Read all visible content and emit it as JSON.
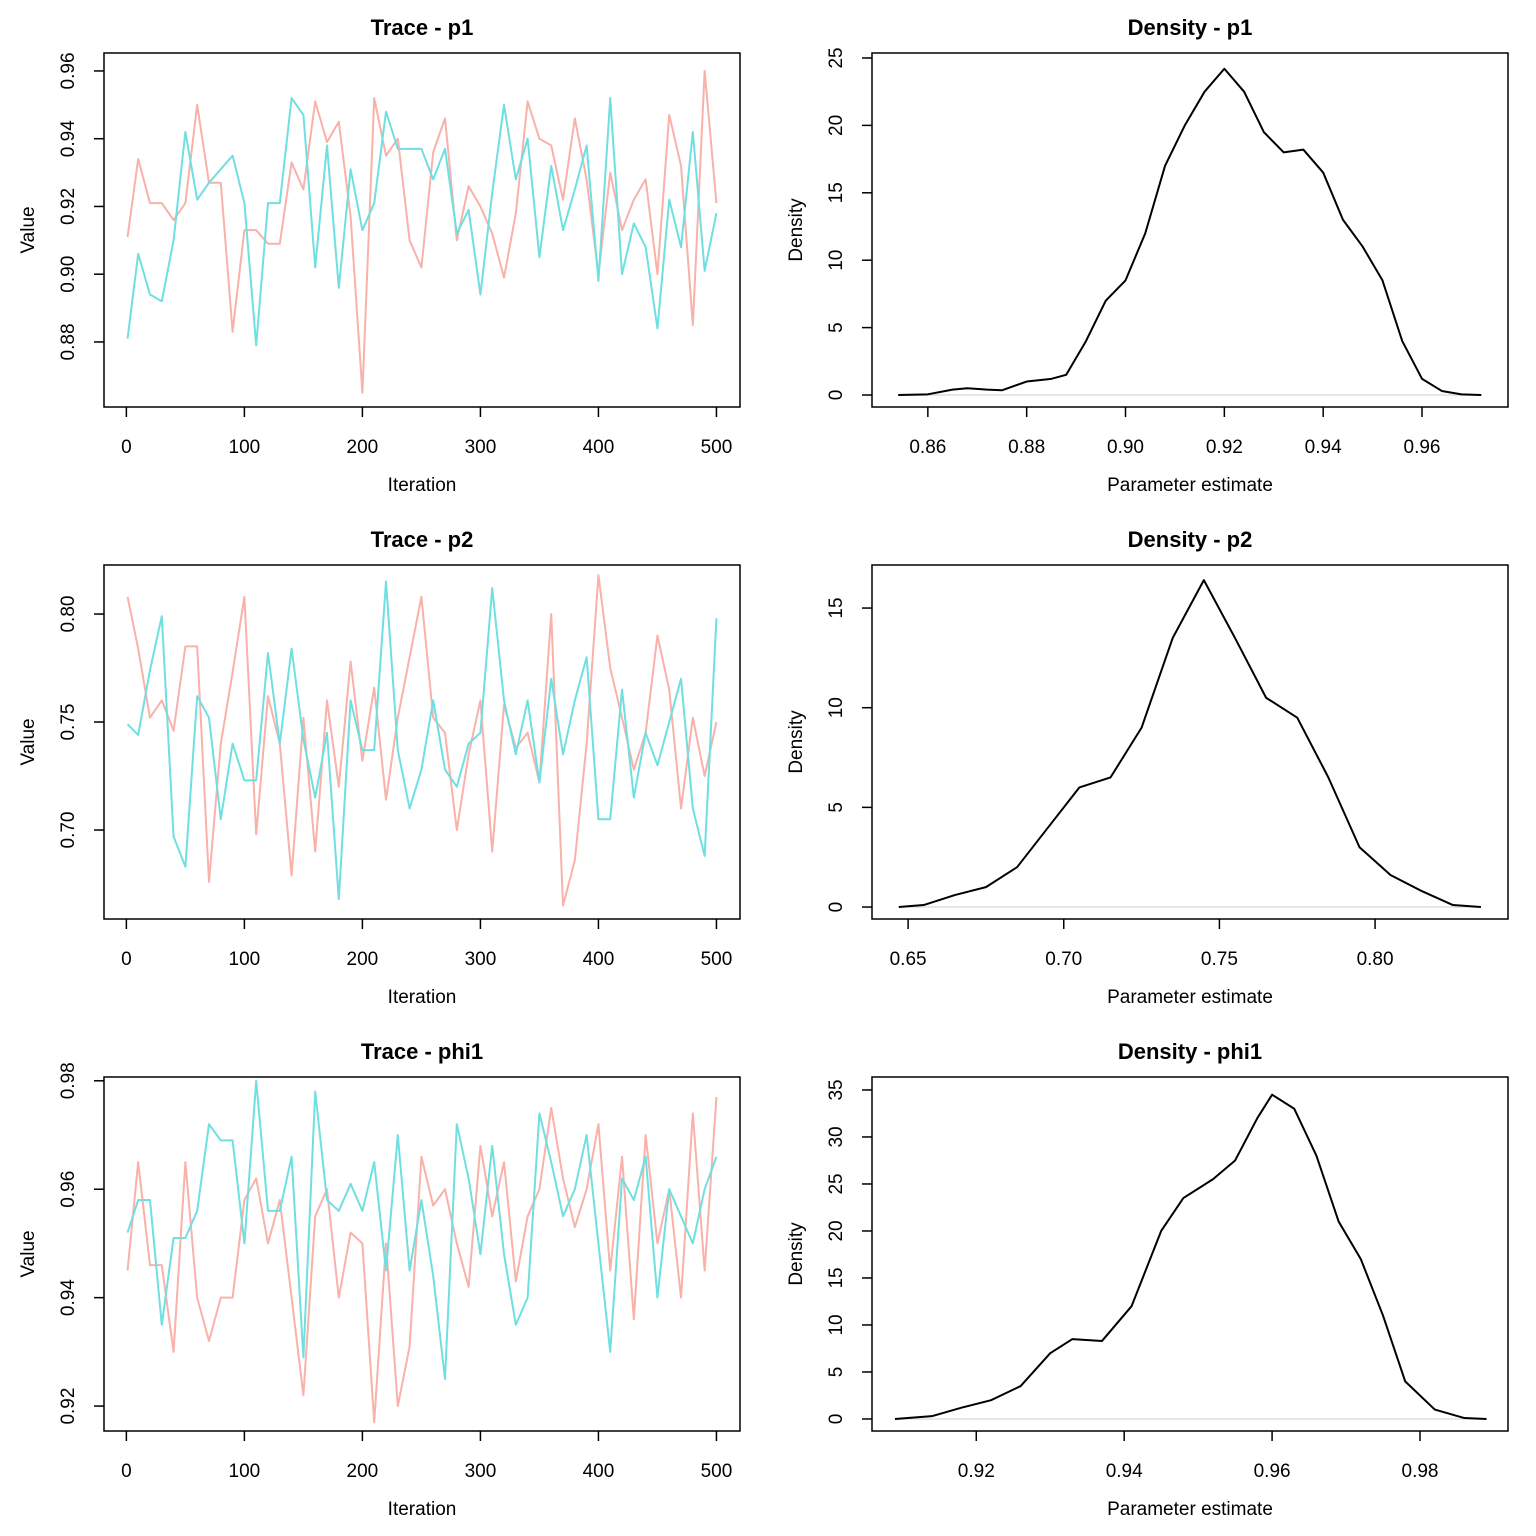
{
  "chart_data": [
    {
      "type": "line",
      "title": "Trace - p1",
      "xlabel": "Iteration",
      "ylabel": "Value",
      "x": [
        1,
        10,
        20,
        30,
        40,
        50,
        60,
        70,
        80,
        90,
        100,
        110,
        120,
        130,
        140,
        150,
        160,
        170,
        180,
        190,
        200,
        210,
        220,
        230,
        240,
        250,
        260,
        270,
        280,
        290,
        300,
        310,
        320,
        330,
        340,
        350,
        360,
        370,
        380,
        390,
        400,
        410,
        420,
        430,
        440,
        450,
        460,
        470,
        480,
        490,
        500
      ],
      "series": [
        {
          "color": "#f9b1aa",
          "values": [
            0.911,
            0.934,
            0.921,
            0.921,
            0.916,
            0.921,
            0.95,
            0.927,
            0.927,
            0.883,
            0.913,
            0.913,
            0.909,
            0.909,
            0.933,
            0.925,
            0.951,
            0.939,
            0.945,
            0.917,
            0.865,
            0.952,
            0.935,
            0.94,
            0.91,
            0.902,
            0.936,
            0.946,
            0.91,
            0.926,
            0.92,
            0.912,
            0.899,
            0.918,
            0.951,
            0.94,
            0.938,
            0.922,
            0.946,
            0.928,
            0.9,
            0.93,
            0.913,
            0.922,
            0.928,
            0.9,
            0.947,
            0.932,
            0.885,
            0.96,
            0.921
          ]
        },
        {
          "color": "#6fdfe1",
          "values": [
            0.881,
            0.906,
            0.894,
            0.892,
            0.91,
            0.942,
            0.922,
            0.927,
            0.931,
            0.935,
            0.921,
            0.879,
            0.921,
            0.921,
            0.952,
            0.947,
            0.902,
            0.938,
            0.896,
            0.931,
            0.913,
            0.921,
            0.948,
            0.937,
            0.937,
            0.937,
            0.928,
            0.937,
            0.912,
            0.919,
            0.894,
            0.924,
            0.95,
            0.928,
            0.94,
            0.905,
            0.932,
            0.913,
            0.925,
            0.938,
            0.898,
            0.952,
            0.9,
            0.915,
            0.908,
            0.884,
            0.922,
            0.908,
            0.942,
            0.901,
            0.918
          ]
        }
      ],
      "xlim": [
        -18.96,
        519.96
      ],
      "xticks": [
        0,
        100,
        200,
        300,
        400,
        500
      ],
      "ylim": [
        0.8608,
        0.9653
      ],
      "yticks": [
        0.88,
        {
          "value": 0.9,
          "label": "0.90"
        },
        0.92,
        0.94,
        0.96
      ]
    },
    {
      "type": "line",
      "title": "Density - p1",
      "xlabel": "Parameter estimate",
      "ylabel": "Density",
      "zero_line": true,
      "x": [
        0.854,
        0.86,
        0.865,
        0.868,
        0.872,
        0.875,
        0.88,
        0.885,
        0.888,
        0.892,
        0.896,
        0.9,
        0.904,
        0.908,
        0.912,
        0.916,
        0.92,
        0.924,
        0.928,
        0.932,
        0.936,
        0.94,
        0.944,
        0.948,
        0.952,
        0.956,
        0.96,
        0.964,
        0.968,
        0.972
      ],
      "series": [
        {
          "color": "#000000",
          "values": [
            0,
            0.05,
            0.4,
            0.5,
            0.4,
            0.35,
            1.0,
            1.2,
            1.5,
            4,
            7,
            8.5,
            12,
            17,
            20,
            22.5,
            24.2,
            22.5,
            19.5,
            18,
            18.2,
            16.5,
            13,
            11,
            8.5,
            4,
            1.2,
            0.3,
            0.05,
            0
          ]
        }
      ],
      "xlim": [
        0.8487,
        0.9774
      ],
      "xticks": [
        0.86,
        0.88,
        {
          "value": 0.9,
          "label": "0.90"
        },
        0.92,
        0.94,
        0.96
      ],
      "ylim": [
        -0.89,
        25.37
      ],
      "yticks": [
        0,
        5,
        10,
        15,
        20,
        25
      ]
    },
    {
      "type": "line",
      "title": "Trace - p2",
      "xlabel": "Iteration",
      "ylabel": "Value",
      "x": [
        1,
        10,
        20,
        30,
        40,
        50,
        60,
        70,
        80,
        90,
        100,
        110,
        120,
        130,
        140,
        150,
        160,
        170,
        180,
        190,
        200,
        210,
        220,
        230,
        240,
        250,
        260,
        270,
        280,
        290,
        300,
        310,
        320,
        330,
        340,
        350,
        360,
        370,
        380,
        390,
        400,
        410,
        420,
        430,
        440,
        450,
        460,
        470,
        480,
        490,
        500
      ],
      "series": [
        {
          "color": "#f9b1aa",
          "values": [
            0.808,
            0.784,
            0.752,
            0.76,
            0.746,
            0.785,
            0.785,
            0.676,
            0.74,
            0.773,
            0.808,
            0.698,
            0.762,
            0.74,
            0.679,
            0.752,
            0.69,
            0.76,
            0.72,
            0.778,
            0.732,
            0.766,
            0.714,
            0.752,
            0.78,
            0.808,
            0.752,
            0.745,
            0.7,
            0.735,
            0.76,
            0.69,
            0.758,
            0.738,
            0.745,
            0.722,
            0.8,
            0.665,
            0.686,
            0.74,
            0.818,
            0.775,
            0.752,
            0.728,
            0.745,
            0.79,
            0.765,
            0.71,
            0.752,
            0.725,
            0.75
          ]
        },
        {
          "color": "#6fdfe1",
          "values": [
            0.749,
            0.744,
            0.774,
            0.799,
            0.697,
            0.683,
            0.762,
            0.752,
            0.705,
            0.74,
            0.723,
            0.723,
            0.782,
            0.74,
            0.784,
            0.742,
            0.715,
            0.745,
            0.668,
            0.76,
            0.737,
            0.737,
            0.815,
            0.737,
            0.71,
            0.728,
            0.76,
            0.728,
            0.72,
            0.74,
            0.745,
            0.812,
            0.76,
            0.735,
            0.76,
            0.722,
            0.77,
            0.735,
            0.76,
            0.78,
            0.705,
            0.705,
            0.765,
            0.715,
            0.745,
            0.73,
            0.75,
            0.77,
            0.71,
            0.688,
            0.798
          ]
        }
      ],
      "xlim": [
        -18.96,
        519.96
      ],
      "xticks": [
        0,
        100,
        200,
        300,
        400,
        500
      ],
      "ylim": [
        0.6588,
        0.8227
      ],
      "yticks": [
        {
          "value": 0.7,
          "label": "0.70"
        },
        0.75,
        {
          "value": 0.8,
          "label": "0.80"
        }
      ]
    },
    {
      "type": "line",
      "title": "Density - p2",
      "xlabel": "Parameter estimate",
      "ylabel": "Density",
      "zero_line": true,
      "x": [
        0.647,
        0.655,
        0.665,
        0.675,
        0.685,
        0.695,
        0.705,
        0.715,
        0.725,
        0.735,
        0.745,
        0.755,
        0.765,
        0.775,
        0.785,
        0.795,
        0.805,
        0.815,
        0.825,
        0.834
      ],
      "series": [
        {
          "color": "#000000",
          "values": [
            0,
            0.1,
            0.6,
            1.0,
            2.0,
            4,
            6,
            6.5,
            9,
            13.5,
            16.4,
            13.5,
            10.5,
            9.5,
            6.5,
            3.0,
            1.6,
            0.8,
            0.1,
            0
          ]
        }
      ],
      "xlim": [
        0.6384,
        0.8427
      ],
      "xticks": [
        0.65,
        {
          "value": 0.7,
          "label": "0.70"
        },
        0.75,
        {
          "value": 0.8,
          "label": "0.80"
        }
      ],
      "ylim": [
        -0.6,
        17.16
      ],
      "yticks": [
        0,
        5,
        10,
        15
      ]
    },
    {
      "type": "line",
      "title": "Trace - phi1",
      "xlabel": "Iteration",
      "ylabel": "Value",
      "x": [
        1,
        10,
        20,
        30,
        40,
        50,
        60,
        70,
        80,
        90,
        100,
        110,
        120,
        130,
        140,
        150,
        160,
        170,
        180,
        190,
        200,
        210,
        220,
        230,
        240,
        250,
        260,
        270,
        280,
        290,
        300,
        310,
        320,
        330,
        340,
        350,
        360,
        370,
        380,
        390,
        400,
        410,
        420,
        430,
        440,
        450,
        460,
        470,
        480,
        490,
        500
      ],
      "series": [
        {
          "color": "#f9b1aa",
          "values": [
            0.945,
            0.965,
            0.946,
            0.946,
            0.93,
            0.965,
            0.94,
            0.932,
            0.94,
            0.94,
            0.958,
            0.962,
            0.95,
            0.958,
            0.94,
            0.922,
            0.955,
            0.96,
            0.94,
            0.952,
            0.95,
            0.917,
            0.95,
            0.92,
            0.931,
            0.966,
            0.957,
            0.96,
            0.95,
            0.942,
            0.968,
            0.955,
            0.965,
            0.943,
            0.955,
            0.96,
            0.975,
            0.962,
            0.953,
            0.96,
            0.972,
            0.945,
            0.966,
            0.936,
            0.97,
            0.95,
            0.96,
            0.94,
            0.974,
            0.945,
            0.977
          ]
        },
        {
          "color": "#6fdfe1",
          "values": [
            0.952,
            0.958,
            0.958,
            0.935,
            0.951,
            0.951,
            0.956,
            0.972,
            0.969,
            0.969,
            0.95,
            0.98,
            0.956,
            0.956,
            0.966,
            0.929,
            0.978,
            0.958,
            0.956,
            0.961,
            0.956,
            0.965,
            0.945,
            0.97,
            0.945,
            0.958,
            0.944,
            0.925,
            0.972,
            0.962,
            0.948,
            0.968,
            0.948,
            0.935,
            0.94,
            0.974,
            0.965,
            0.955,
            0.96,
            0.97,
            0.95,
            0.93,
            0.962,
            0.958,
            0.966,
            0.94,
            0.96,
            0.955,
            0.95,
            0.96,
            0.966
          ]
        }
      ],
      "xlim": [
        -18.96,
        519.96
      ],
      "xticks": [
        0,
        100,
        200,
        300,
        400,
        500
      ],
      "ylim": [
        0.9154,
        0.9807
      ],
      "yticks": [
        0.92,
        0.94,
        0.96,
        0.98
      ]
    },
    {
      "type": "line",
      "title": "Density - phi1",
      "xlabel": "Parameter estimate",
      "ylabel": "Density",
      "zero_line": true,
      "x": [
        0.909,
        0.914,
        0.918,
        0.922,
        0.926,
        0.93,
        0.933,
        0.937,
        0.941,
        0.945,
        0.948,
        0.952,
        0.955,
        0.958,
        0.96,
        0.963,
        0.966,
        0.969,
        0.972,
        0.975,
        0.978,
        0.982,
        0.986,
        0.989
      ],
      "series": [
        {
          "color": "#000000",
          "values": [
            0,
            0.3,
            1.2,
            2.0,
            3.5,
            7,
            8.5,
            8.3,
            12,
            20,
            23.5,
            25.5,
            27.5,
            32,
            34.5,
            33,
            28,
            21,
            17,
            11,
            4,
            1,
            0.1,
            0
          ]
        }
      ],
      "xlim": [
        0.9059,
        0.9919
      ],
      "xticks": [
        0.92,
        0.94,
        0.96,
        0.98
      ],
      "ylim": [
        -1.28,
        36.38
      ],
      "yticks": [
        0,
        5,
        10,
        15,
        20,
        25,
        30,
        35
      ]
    }
  ]
}
